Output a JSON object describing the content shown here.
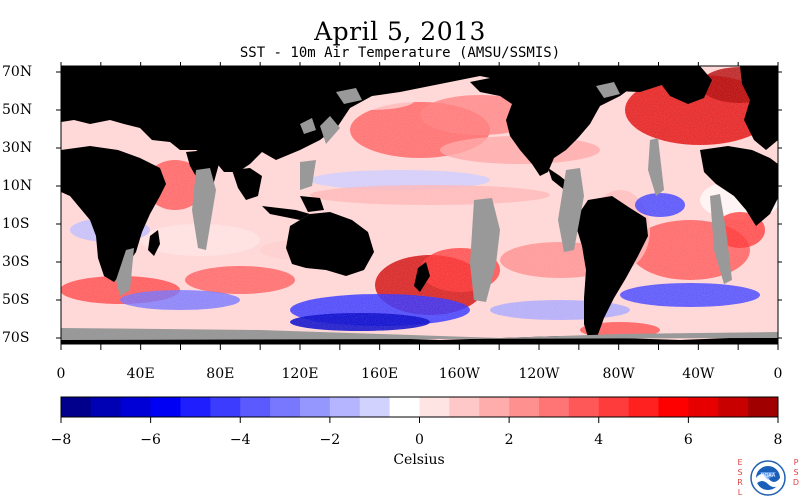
{
  "header": {
    "title": "April 5, 2013",
    "subtitle": "SST - 10m Air Temperature (AMSU/SSMIS)"
  },
  "map": {
    "lat_labels": [
      "70N",
      "50N",
      "30N",
      "10N",
      "10S",
      "30S",
      "50S",
      "70S"
    ],
    "lon_labels": [
      "0",
      "40E",
      "80E",
      "120E",
      "160E",
      "160W",
      "120W",
      "80W",
      "40W",
      "0"
    ],
    "land_color": "#000000",
    "missing_color": "#999999"
  },
  "colorbar": {
    "ticks": [
      "−8",
      "−6",
      "−4",
      "−2",
      "0",
      "2",
      "4",
      "6",
      "8"
    ],
    "units": "Celsius",
    "range": [
      -8,
      8
    ],
    "colors": [
      "#00008c",
      "#0000b4",
      "#0000d6",
      "#0000f5",
      "#1e1eff",
      "#3c3cff",
      "#5a5aff",
      "#7878ff",
      "#9696ff",
      "#b4b4ff",
      "#d2d2ff",
      "#ffffff",
      "#ffe4e4",
      "#ffc8c8",
      "#ffacac",
      "#ff9090",
      "#ff7474",
      "#ff5858",
      "#ff3c3c",
      "#ff2020",
      "#ff0000",
      "#e60000",
      "#c80000",
      "#a00000"
    ]
  },
  "logo": {
    "left_letters": [
      "E",
      "S",
      "R",
      "L"
    ],
    "right_letters": [
      "P",
      "S",
      "D"
    ],
    "emblem_text": "NOAA"
  }
}
